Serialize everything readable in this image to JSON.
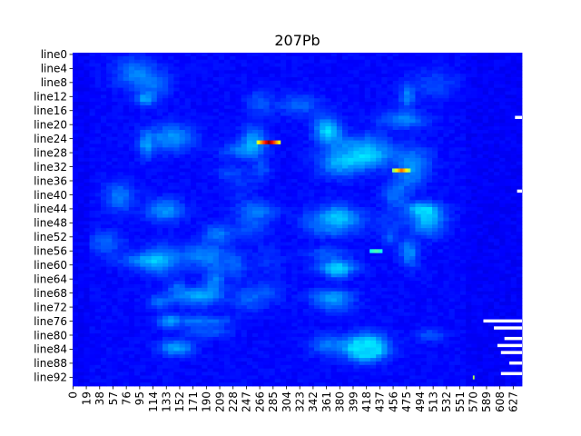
{
  "chart_data": {
    "type": "heatmap",
    "title": "207Pb",
    "xlabel": "",
    "ylabel": "",
    "colormap": "jet",
    "n_rows": 95,
    "n_cols": 640,
    "y_tick_labels": [
      "line0",
      "line4",
      "line8",
      "line12",
      "line16",
      "line20",
      "line24",
      "line28",
      "line32",
      "line36",
      "line40",
      "line44",
      "line48",
      "line52",
      "line56",
      "line60",
      "line64",
      "line68",
      "line72",
      "line76",
      "line80",
      "line84",
      "line88",
      "line92"
    ],
    "y_tick_step": 4,
    "x_tick_labels": [
      "0",
      "19",
      "38",
      "57",
      "76",
      "95",
      "114",
      "133",
      "152",
      "171",
      "190",
      "209",
      "228",
      "247",
      "266",
      "285",
      "304",
      "323",
      "342",
      "361",
      "380",
      "399",
      "418",
      "437",
      "456",
      "475",
      "494",
      "513",
      "532",
      "551",
      "570",
      "589",
      "608",
      "627"
    ],
    "x_tick_step": 19,
    "hotspots": [
      {
        "row": 25,
        "col_start": 262,
        "col_end": 295,
        "intensity": 1.0
      },
      {
        "row": 33,
        "col_start": 455,
        "col_end": 480,
        "intensity": 0.78
      },
      {
        "row": 56,
        "col_start": 423,
        "col_end": 440,
        "intensity": 0.45
      },
      {
        "row": 92,
        "col_start": 570,
        "col_end": 572,
        "intensity": 0.92
      }
    ],
    "missing_segments": [
      {
        "row": 76,
        "col_start": 585,
        "col_end": 640
      },
      {
        "row": 78,
        "col_start": 600,
        "col_end": 640
      },
      {
        "row": 81,
        "col_start": 615,
        "col_end": 640
      },
      {
        "row": 83,
        "col_start": 605,
        "col_end": 640
      },
      {
        "row": 85,
        "col_start": 610,
        "col_end": 640
      },
      {
        "row": 88,
        "col_start": 622,
        "col_end": 640
      },
      {
        "row": 91,
        "col_start": 610,
        "col_end": 640
      },
      {
        "row": 18,
        "col_start": 630,
        "col_end": 640
      },
      {
        "row": 39,
        "col_start": 633,
        "col_end": 640
      }
    ],
    "colors": {
      "background_low": "#00008b",
      "mid": "#0000ff",
      "missing": "#ffffff"
    }
  }
}
